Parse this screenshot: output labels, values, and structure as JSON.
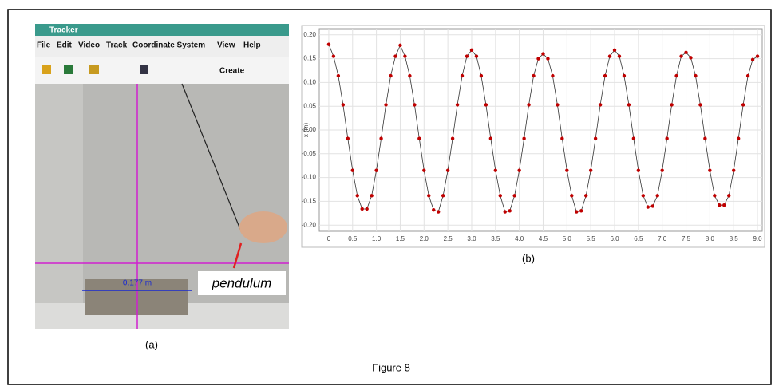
{
  "tracker": {
    "app_title": "Tracker",
    "menu": [
      "File",
      "Edit",
      "Video",
      "Track",
      "Coordinate System",
      "View",
      "Help"
    ],
    "toolbar_create": "Create",
    "measurement": "0.177 m",
    "annotation": "pendulum"
  },
  "captions": {
    "a": "(a)",
    "b": "(b)",
    "figure": "Figure 8"
  },
  "chart_data": {
    "type": "line",
    "ylabel": "x (m)",
    "x": [
      0,
      0.1,
      0.2,
      0.3,
      0.4,
      0.5,
      0.6,
      0.7,
      0.8,
      0.9,
      1.0,
      1.1,
      1.2,
      1.3,
      1.4,
      1.5,
      1.6,
      1.7,
      1.8,
      1.9,
      2.0,
      2.1,
      2.2,
      2.3,
      2.4,
      2.5,
      2.6,
      2.7,
      2.8,
      2.9,
      3.0,
      3.1,
      3.2,
      3.3,
      3.4,
      3.5,
      3.6,
      3.7,
      3.8,
      3.9,
      4.0,
      4.1,
      4.2,
      4.3,
      4.4,
      4.5,
      4.6,
      4.7,
      4.8,
      4.9,
      5.0,
      5.1,
      5.2,
      5.3,
      5.4,
      5.5,
      5.6,
      5.7,
      5.8,
      5.9,
      6.0,
      6.1,
      6.2,
      6.3,
      6.4,
      6.5,
      6.6,
      6.7,
      6.8,
      6.9,
      7.0,
      7.1,
      7.2,
      7.3,
      7.4,
      7.5,
      7.6,
      7.7,
      7.8,
      7.9,
      8.0,
      8.1,
      8.2,
      8.3,
      8.4,
      8.5,
      8.6,
      8.7,
      8.8,
      8.9,
      9.0
    ],
    "series": [
      {
        "color": "#c00000",
        "values": [
          0.18,
          0.155,
          0.114,
          0.053,
          -0.018,
          -0.085,
          -0.138,
          -0.166,
          -0.166,
          -0.138,
          -0.085,
          -0.018,
          0.053,
          0.114,
          0.155,
          0.178,
          0.155,
          0.114,
          0.053,
          -0.018,
          -0.085,
          -0.138,
          -0.168,
          -0.172,
          -0.138,
          -0.085,
          -0.018,
          0.053,
          0.114,
          0.155,
          0.168,
          0.155,
          0.114,
          0.053,
          -0.018,
          -0.085,
          -0.138,
          -0.172,
          -0.17,
          -0.138,
          -0.085,
          -0.018,
          0.053,
          0.114,
          0.15,
          0.16,
          0.15,
          0.114,
          0.053,
          -0.018,
          -0.085,
          -0.138,
          -0.172,
          -0.17,
          -0.138,
          -0.085,
          -0.018,
          0.053,
          0.114,
          0.155,
          0.168,
          0.155,
          0.114,
          0.053,
          -0.018,
          -0.085,
          -0.138,
          -0.162,
          -0.16,
          -0.138,
          -0.085,
          -0.018,
          0.053,
          0.114,
          0.155,
          0.163,
          0.152,
          0.114,
          0.053,
          -0.018,
          -0.085,
          -0.138,
          -0.158,
          -0.158,
          -0.138,
          -0.085,
          -0.018,
          0.053,
          0.114,
          0.148,
          0.155
        ]
      }
    ],
    "xlim": [
      -0.2,
      9.1
    ],
    "ylim": [
      -0.213,
      0.213
    ],
    "xticks": [
      0,
      0.5,
      {
        "value": 1,
        "label": "1.0"
      },
      1.5,
      {
        "value": 2,
        "label": "2.0"
      },
      2.5,
      {
        "value": 3,
        "label": "3.0"
      },
      3.5,
      {
        "value": 4,
        "label": "4.0"
      },
      4.5,
      {
        "value": 5,
        "label": "5.0"
      },
      5.5,
      {
        "value": 6,
        "label": "6.0"
      },
      6.5,
      {
        "value": 7,
        "label": "7.0"
      },
      7.5,
      {
        "value": 8,
        "label": "8.0"
      },
      8.5,
      {
        "value": 9,
        "label": "9.0"
      }
    ],
    "yticks": [
      {
        "value": 0.2,
        "label": "0.20"
      },
      {
        "value": 0.15,
        "label": "0.15"
      },
      {
        "value": 0.1,
        "label": "0.10"
      },
      {
        "value": 0.05,
        "label": "0.05"
      },
      {
        "value": 0,
        "label": "-0.00"
      },
      {
        "value": -0.05,
        "label": "-0.05"
      },
      {
        "value": -0.1,
        "label": "-0.10"
      },
      {
        "value": -0.15,
        "label": "-0.15"
      },
      {
        "value": -0.2,
        "label": "-0.20"
      }
    ],
    "grid": true
  }
}
